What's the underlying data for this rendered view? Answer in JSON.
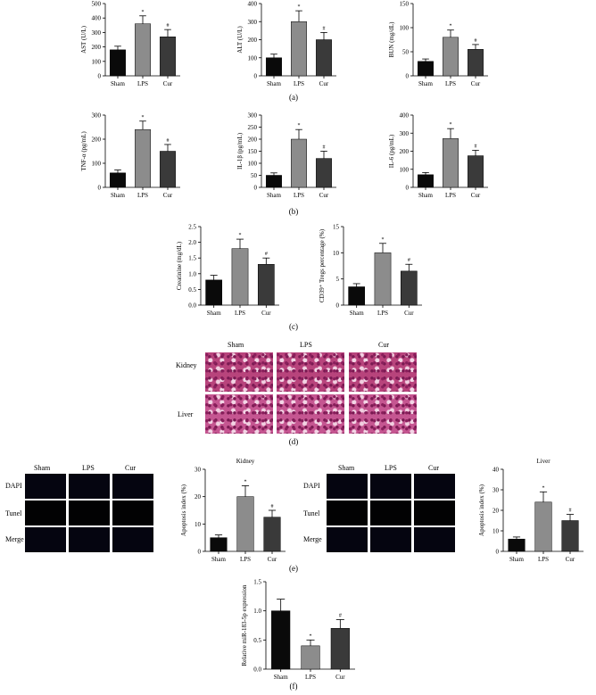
{
  "panel_labels": {
    "a": "(a)",
    "b": "(b)",
    "c": "(c)",
    "d": "(d)",
    "e": "(e)",
    "f": "(f)"
  },
  "histology": {
    "columns": [
      "Sham",
      "LPS",
      "Cur"
    ],
    "rows": [
      "Kidney",
      "Liver"
    ]
  },
  "fluorescence": {
    "left": {
      "columns": [
        "Sham",
        "LPS",
        "Cur"
      ],
      "rows": [
        "DAPI",
        "Tunel",
        "Merge"
      ]
    },
    "right": {
      "columns": [
        "Sham",
        "LPS",
        "Cur"
      ],
      "rows": [
        "DAPI",
        "Tunel",
        "Merge"
      ]
    }
  },
  "colors": {
    "sham": "#0a0a0a",
    "lps": "#8c8c8c",
    "cur": "#3a3a3a"
  },
  "chart_data": [
    {
      "id": "ast",
      "type": "bar",
      "categories": [
        "Sham",
        "LPS",
        "Cur"
      ],
      "values": [
        180,
        360,
        270
      ],
      "errors": [
        25,
        55,
        50
      ],
      "marks": [
        "",
        "*",
        "#"
      ],
      "ylabel": "AST (U/L)",
      "ylim": [
        0,
        500
      ],
      "ticks": [
        0,
        100,
        200,
        300,
        400,
        500
      ]
    },
    {
      "id": "alt",
      "type": "bar",
      "categories": [
        "Sham",
        "LPS",
        "Cur"
      ],
      "values": [
        100,
        300,
        200
      ],
      "errors": [
        20,
        60,
        40
      ],
      "marks": [
        "",
        "*",
        "#"
      ],
      "ylabel": "ALT (U/L)",
      "ylim": [
        0,
        400
      ],
      "ticks": [
        0,
        100,
        200,
        300,
        400
      ]
    },
    {
      "id": "bun",
      "type": "bar",
      "categories": [
        "Sham",
        "LPS",
        "Cur"
      ],
      "values": [
        30,
        80,
        55
      ],
      "errors": [
        5,
        15,
        10
      ],
      "marks": [
        "",
        "*",
        "#"
      ],
      "ylabel": "BUN (mg/dL)",
      "ylim": [
        0,
        150
      ],
      "ticks": [
        0,
        50,
        100,
        150
      ]
    },
    {
      "id": "tnf",
      "type": "bar",
      "categories": [
        "Sham",
        "LPS",
        "Cur"
      ],
      "values": [
        60,
        240,
        150
      ],
      "errors": [
        12,
        35,
        28
      ],
      "marks": [
        "",
        "*",
        "#"
      ],
      "ylabel": "TNF-α (pg/mL)",
      "ylim": [
        0,
        300
      ],
      "ticks": [
        0,
        100,
        200,
        300
      ]
    },
    {
      "id": "il1b",
      "type": "bar",
      "categories": [
        "Sham",
        "LPS",
        "Cur"
      ],
      "values": [
        50,
        200,
        120
      ],
      "errors": [
        10,
        40,
        30
      ],
      "marks": [
        "",
        "*",
        "#"
      ],
      "ylabel": "IL-1β (pg/mL)",
      "ylim": [
        0,
        300
      ],
      "ticks": [
        0,
        50,
        100,
        150,
        200,
        250,
        300
      ]
    },
    {
      "id": "il6",
      "type": "bar",
      "categories": [
        "Sham",
        "LPS",
        "Cur"
      ],
      "values": [
        70,
        270,
        175
      ],
      "errors": [
        12,
        55,
        30
      ],
      "marks": [
        "",
        "*",
        "#"
      ],
      "ylabel": "IL-6 (pg/mL)",
      "ylim": [
        0,
        400
      ],
      "ticks": [
        0,
        100,
        200,
        300,
        400
      ]
    },
    {
      "id": "creatinine",
      "type": "bar",
      "categories": [
        "Sham",
        "LPS",
        "Cur"
      ],
      "values": [
        0.8,
        1.8,
        1.3
      ],
      "errors": [
        0.15,
        0.3,
        0.2
      ],
      "marks": [
        "",
        "*",
        "#"
      ],
      "ylabel": "Creatinine (mg/dL)",
      "ylim": [
        0,
        2.5
      ],
      "ticks": [
        0.0,
        0.5,
        1.0,
        1.5,
        2.0,
        2.5
      ],
      "decimals": 1
    },
    {
      "id": "cd39",
      "type": "bar",
      "categories": [
        "Sham",
        "LPS",
        "Cur"
      ],
      "values": [
        3.5,
        10,
        6.5
      ],
      "errors": [
        0.6,
        1.8,
        1.3
      ],
      "marks": [
        "",
        "*",
        "#"
      ],
      "ylabel": "CD39⁺ Tregs percentage (%)",
      "ylim": [
        0,
        15
      ],
      "ticks": [
        0,
        5,
        10,
        15
      ]
    },
    {
      "id": "apop_kidney",
      "type": "bar",
      "title": "Kidney",
      "categories": [
        "Sham",
        "LPS",
        "Cur"
      ],
      "values": [
        5,
        20,
        12.5
      ],
      "errors": [
        1,
        4,
        2.5
      ],
      "marks": [
        "",
        "*",
        "#"
      ],
      "ylabel": "Apoptosis index (%)",
      "ylim": [
        0,
        30
      ],
      "ticks": [
        0,
        10,
        20,
        30
      ]
    },
    {
      "id": "apop_liver",
      "type": "bar",
      "title": "Liver",
      "categories": [
        "Sham",
        "LPS",
        "Cur"
      ],
      "values": [
        6,
        24,
        15
      ],
      "errors": [
        1,
        5,
        3
      ],
      "marks": [
        "",
        "*",
        "#"
      ],
      "ylabel": "Apoptosis index (%)",
      "ylim": [
        0,
        40
      ],
      "ticks": [
        0,
        10,
        20,
        30,
        40
      ]
    },
    {
      "id": "mir",
      "type": "bar",
      "categories": [
        "Sham",
        "LPS",
        "Cur"
      ],
      "values": [
        1.0,
        0.4,
        0.7
      ],
      "errors": [
        0.2,
        0.1,
        0.15
      ],
      "marks": [
        "",
        "*",
        "#"
      ],
      "ylabel": "Relative miR-183-5p expression",
      "ylim": [
        0,
        1.5
      ],
      "ticks": [
        0.0,
        0.5,
        1.0,
        1.5
      ],
      "decimals": 1
    }
  ]
}
